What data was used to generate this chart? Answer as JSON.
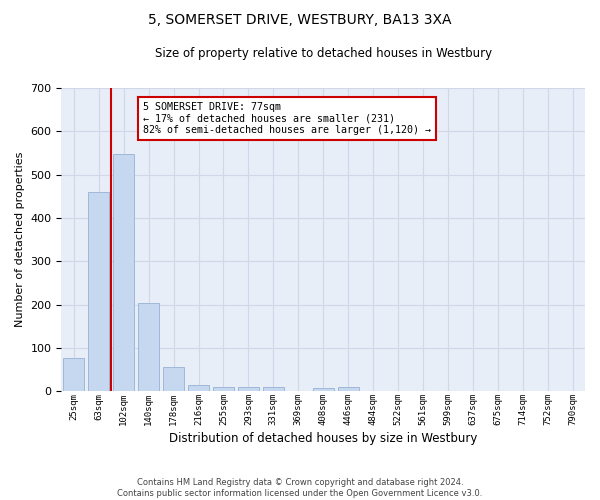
{
  "title": "5, SOMERSET DRIVE, WESTBURY, BA13 3XA",
  "subtitle": "Size of property relative to detached houses in Westbury",
  "xlabel": "Distribution of detached houses by size in Westbury",
  "ylabel": "Number of detached properties",
  "categories": [
    "25sqm",
    "63sqm",
    "102sqm",
    "140sqm",
    "178sqm",
    "216sqm",
    "255sqm",
    "293sqm",
    "331sqm",
    "369sqm",
    "408sqm",
    "446sqm",
    "484sqm",
    "522sqm",
    "561sqm",
    "599sqm",
    "637sqm",
    "675sqm",
    "714sqm",
    "752sqm",
    "790sqm"
  ],
  "values": [
    78,
    460,
    548,
    203,
    57,
    15,
    10,
    10,
    10,
    0,
    8,
    10,
    0,
    0,
    0,
    0,
    0,
    0,
    0,
    0,
    0
  ],
  "bar_color": "#c5d8f0",
  "bar_edge_color": "#a0b8d8",
  "vline_x": 1.5,
  "vline_color": "#cc0000",
  "annotation_text": "5 SOMERSET DRIVE: 77sqm\n← 17% of detached houses are smaller (231)\n82% of semi-detached houses are larger (1,120) →",
  "annotation_box_color": "#ffffff",
  "annotation_box_edge": "#cc0000",
  "ylim": [
    0,
    700
  ],
  "yticks": [
    0,
    100,
    200,
    300,
    400,
    500,
    600,
    700
  ],
  "grid_color": "#d0d8e8",
  "background_color": "#e8eef8",
  "footer1": "Contains HM Land Registry data © Crown copyright and database right 2024.",
  "footer2": "Contains public sector information licensed under the Open Government Licence v3.0."
}
